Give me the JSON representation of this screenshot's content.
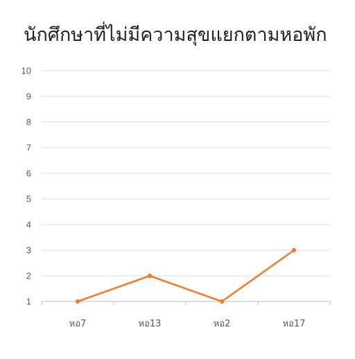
{
  "chart_data": {
    "type": "line",
    "title": "นักศึกษาที่ไม่มีความสุขแยกตามหอพัก",
    "xlabel": "",
    "ylabel": "",
    "categories": [
      "หอ7",
      "หอ13",
      "หอ2",
      "หอ17"
    ],
    "series": [
      {
        "values": [
          1,
          2,
          1,
          3
        ]
      }
    ],
    "ylim": [
      1,
      10
    ],
    "yticks": [
      "1",
      "2",
      "3",
      "4",
      "5",
      "6",
      "7",
      "8",
      "9",
      "10"
    ],
    "grid": true,
    "legend": "none",
    "colors": {
      "line": "#ED7D31",
      "grid": "#D9D9D9",
      "axis": "#BFBFBF",
      "text": "#595959"
    }
  }
}
